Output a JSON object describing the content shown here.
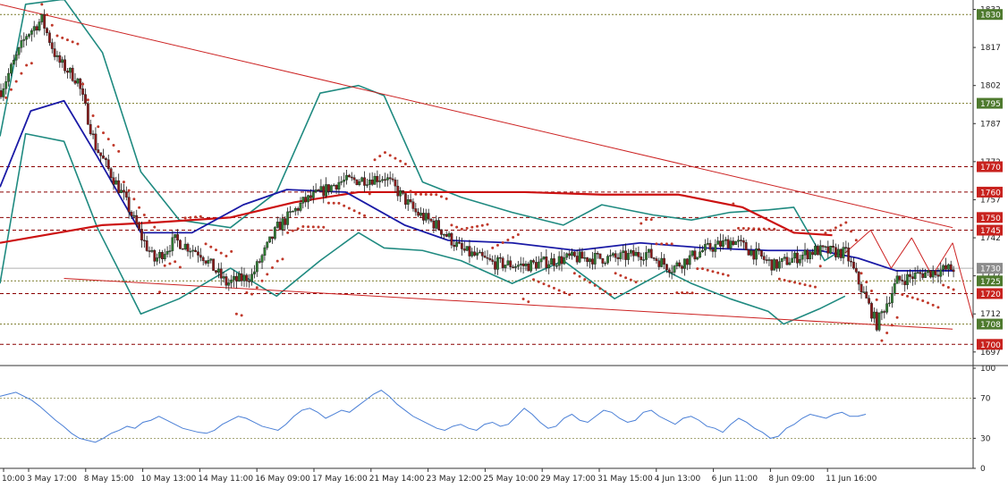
{
  "colors": {
    "background": "#ffffff",
    "bullish": "#2e7d32",
    "bearish": "#8b1a1a",
    "bollinger": "#1f8a80",
    "ma_fast": "#1a1aa6",
    "ma_slow": "#cc1111",
    "sar": "#c0392b",
    "trendline": "#cc2222",
    "rsi": "#4a7fd6",
    "grid_level": "#8a0000",
    "grid_dotted": "#7a7a2a",
    "badge_green": "#4e7a2e",
    "badge_red": "#c8221e",
    "badge_grey": "#8c8c8c"
  },
  "chart_data": [
    {
      "type": "candlestick",
      "title": "",
      "y_range": [
        1692,
        1835
      ],
      "y_ticks": [
        "1697",
        "1712",
        "1727",
        "1742",
        "1757",
        "1772",
        "1787",
        "1802",
        "1817",
        "1832"
      ],
      "x_tick_labels": [
        "10:00",
        "3 May 17:00",
        "8 May 15:00",
        "10 May 13:00",
        "14 May 11:00",
        "16 May 09:00",
        "17 May 16:00",
        "21 May 14:00",
        "23 May 12:00",
        "25 May 10:00",
        "29 May 17:00",
        "31 May 15:00",
        "4 Jun 13:00",
        "6 Jun 11:00",
        "8 Jun 09:00",
        "11 Jun 16:00"
      ],
      "price_levels": [
        {
          "value": "1830",
          "style": "dotted",
          "badge": "green"
        },
        {
          "value": "1795",
          "style": "dotted",
          "badge": "green"
        },
        {
          "value": "1770",
          "style": "dashed",
          "badge": "red"
        },
        {
          "value": "1760",
          "style": "dashed",
          "badge": "red"
        },
        {
          "value": "1750",
          "style": "dashed",
          "badge": "red"
        },
        {
          "value": "1745",
          "style": "dashed",
          "badge": "red"
        },
        {
          "value": "1730",
          "style": "solid",
          "badge": "grey"
        },
        {
          "value": "1725",
          "style": "dotted",
          "badge": "green"
        },
        {
          "value": "1720",
          "style": "dashed",
          "badge": "red"
        },
        {
          "value": "1708",
          "style": "dotted",
          "badge": "green"
        },
        {
          "value": "1700",
          "style": "dashed",
          "badge": "red"
        }
      ],
      "price_path": [
        [
          0,
          1800
        ],
        [
          10,
          1822
        ],
        [
          16,
          1828
        ],
        [
          22,
          1812
        ],
        [
          30,
          1804
        ],
        [
          37,
          1778
        ],
        [
          48,
          1758
        ],
        [
          55,
          1742
        ],
        [
          60,
          1733
        ],
        [
          68,
          1741
        ],
        [
          78,
          1736
        ],
        [
          88,
          1724
        ],
        [
          98,
          1727
        ],
        [
          108,
          1746
        ],
        [
          118,
          1756
        ],
        [
          132,
          1764
        ],
        [
          150,
          1766
        ],
        [
          162,
          1752
        ],
        [
          170,
          1747
        ],
        [
          180,
          1737
        ],
        [
          192,
          1732
        ],
        [
          205,
          1731
        ],
        [
          222,
          1734
        ],
        [
          240,
          1734
        ],
        [
          252,
          1736
        ],
        [
          262,
          1730
        ],
        [
          274,
          1737
        ],
        [
          286,
          1741
        ],
        [
          302,
          1731
        ],
        [
          318,
          1737
        ],
        [
          330,
          1736
        ],
        [
          342,
          1708
        ],
        [
          350,
          1725
        ],
        [
          360,
          1728
        ],
        [
          372,
          1730
        ]
      ],
      "ma_fast_path": [
        [
          0,
          1762
        ],
        [
          12,
          1792
        ],
        [
          25,
          1796
        ],
        [
          38,
          1774
        ],
        [
          55,
          1744
        ],
        [
          75,
          1744
        ],
        [
          95,
          1755
        ],
        [
          112,
          1761
        ],
        [
          135,
          1760
        ],
        [
          158,
          1747
        ],
        [
          175,
          1741
        ],
        [
          200,
          1740
        ],
        [
          225,
          1737
        ],
        [
          250,
          1740
        ],
        [
          275,
          1738
        ],
        [
          300,
          1737
        ],
        [
          320,
          1737
        ],
        [
          335,
          1734
        ],
        [
          350,
          1729
        ],
        [
          372,
          1729
        ]
      ],
      "ma_slow_path": [
        [
          0,
          1740
        ],
        [
          40,
          1747
        ],
        [
          60,
          1748
        ],
        [
          90,
          1750
        ],
        [
          115,
          1756
        ],
        [
          140,
          1760
        ],
        [
          170,
          1760
        ],
        [
          205,
          1760
        ],
        [
          235,
          1759
        ],
        [
          265,
          1759
        ],
        [
          290,
          1754
        ],
        [
          310,
          1744
        ],
        [
          325,
          1743
        ]
      ],
      "bb_upper_path": [
        [
          0,
          1782
        ],
        [
          10,
          1834
        ],
        [
          25,
          1836
        ],
        [
          40,
          1815
        ],
        [
          55,
          1768
        ],
        [
          70,
          1749
        ],
        [
          90,
          1746
        ],
        [
          108,
          1760
        ],
        [
          125,
          1799
        ],
        [
          140,
          1802
        ],
        [
          150,
          1798
        ],
        [
          165,
          1764
        ],
        [
          180,
          1758
        ],
        [
          200,
          1752
        ],
        [
          220,
          1747
        ],
        [
          235,
          1755
        ],
        [
          255,
          1751
        ],
        [
          270,
          1749
        ],
        [
          285,
          1752
        ],
        [
          300,
          1753
        ],
        [
          310,
          1754
        ],
        [
          322,
          1733
        ],
        [
          330,
          1738
        ]
      ],
      "bb_lower_path": [
        [
          0,
          1724
        ],
        [
          10,
          1783
        ],
        [
          25,
          1780
        ],
        [
          38,
          1746
        ],
        [
          55,
          1712
        ],
        [
          70,
          1718
        ],
        [
          90,
          1730
        ],
        [
          108,
          1719
        ],
        [
          125,
          1733
        ],
        [
          140,
          1744
        ],
        [
          150,
          1738
        ],
        [
          165,
          1737
        ],
        [
          180,
          1733
        ],
        [
          200,
          1724
        ],
        [
          220,
          1733
        ],
        [
          240,
          1718
        ],
        [
          260,
          1729
        ],
        [
          270,
          1724
        ],
        [
          285,
          1718
        ],
        [
          300,
          1713
        ],
        [
          306,
          1708
        ],
        [
          320,
          1714
        ],
        [
          330,
          1719
        ]
      ],
      "resistance_line": [
        [
          0,
          1834
        ],
        [
          372,
          1746
        ]
      ],
      "support_line": [
        [
          25,
          1726
        ],
        [
          372,
          1706
        ]
      ],
      "forecast_zigzag": [
        [
          330,
          1736
        ],
        [
          340,
          1745
        ],
        [
          348,
          1730
        ],
        [
          356,
          1742
        ],
        [
          364,
          1727
        ],
        [
          372,
          1740
        ],
        [
          380,
          1710
        ]
      ]
    },
    {
      "type": "line",
      "title": "",
      "y_range": [
        0,
        100
      ],
      "y_ticks": [
        "0",
        "30",
        "70",
        "100"
      ],
      "levels": [
        30,
        70
      ],
      "rsi_values": [
        72,
        74,
        76,
        72,
        68,
        62,
        55,
        48,
        42,
        35,
        30,
        28,
        26,
        30,
        35,
        38,
        42,
        40,
        46,
        48,
        52,
        48,
        44,
        40,
        38,
        36,
        35,
        38,
        44,
        48,
        52,
        50,
        46,
        42,
        40,
        38,
        44,
        52,
        58,
        60,
        56,
        50,
        54,
        58,
        56,
        62,
        68,
        74,
        78,
        72,
        64,
        58,
        52,
        48,
        44,
        40,
        38,
        42,
        44,
        40,
        38,
        44,
        46,
        42,
        44,
        52,
        60,
        54,
        46,
        40,
        42,
        50,
        54,
        48,
        46,
        52,
        58,
        56,
        50,
        46,
        48,
        56,
        58,
        52,
        48,
        44,
        50,
        52,
        48,
        42,
        40,
        36,
        44,
        50,
        46,
        40,
        36,
        30,
        32,
        40,
        44,
        50,
        54,
        52,
        50,
        54,
        56,
        52,
        52,
        54
      ]
    }
  ]
}
